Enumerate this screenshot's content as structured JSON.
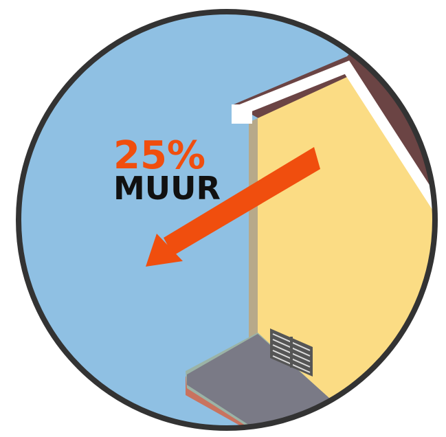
{
  "label": {
    "percentage": "25%",
    "name": "MUUR"
  }
}
